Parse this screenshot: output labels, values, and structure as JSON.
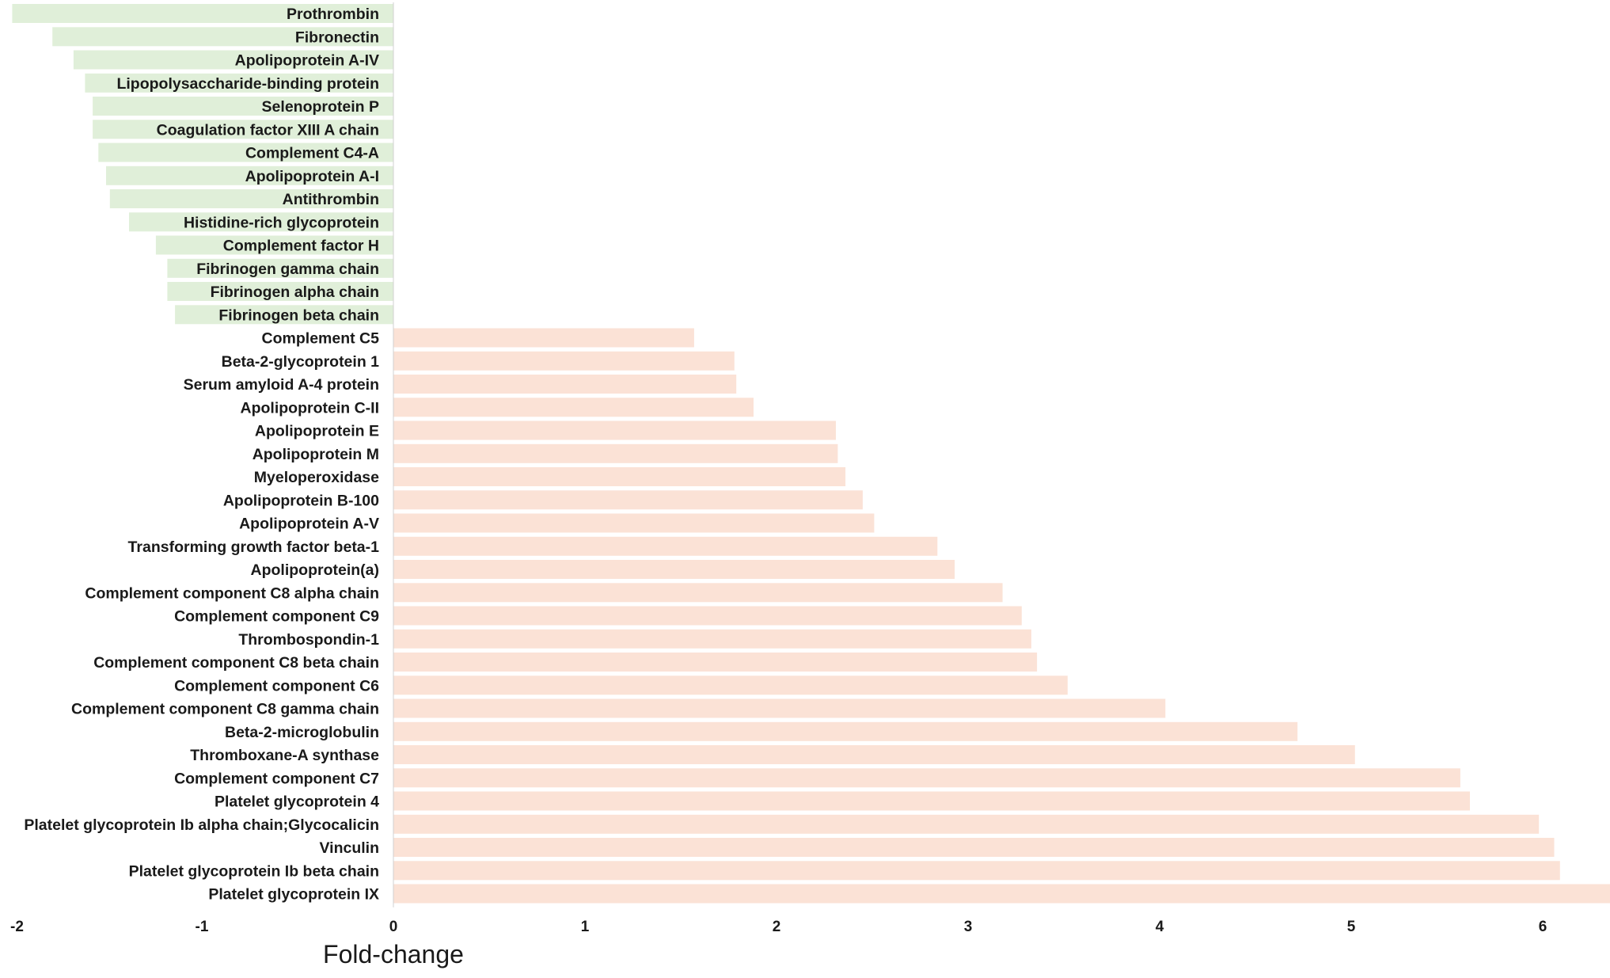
{
  "chart_data": {
    "type": "bar",
    "orientation": "horizontal",
    "xlabel": "Fold-change",
    "ylabel": "",
    "title": "",
    "xlim": [
      -2,
      6.35
    ],
    "xticks": [
      "-2",
      "-1",
      "0",
      "1",
      "2",
      "3",
      "4",
      "5",
      "6"
    ],
    "grid": false,
    "legend": "none",
    "colors": {
      "negative": "#e0efd9",
      "positive": "#fbe2d6",
      "axis": "#d0d0d0",
      "text": "#1a1a1a"
    },
    "categories": [
      "Prothrombin",
      "Fibronectin",
      "Apolipoprotein A-IV",
      "Lipopolysaccharide-binding protein",
      "Selenoprotein P",
      "Coagulation factor XIII A chain",
      "Complement C4-A",
      "Apolipoprotein A-I",
      "Antithrombin",
      "Histidine-rich glycoprotein",
      "Complement factor H",
      "Fibrinogen gamma chain",
      "Fibrinogen alpha chain",
      "Fibrinogen beta chain",
      "Complement C5",
      "Beta-2-glycoprotein 1",
      "Serum amyloid A-4 protein",
      "Apolipoprotein C-II",
      "Apolipoprotein E",
      "Apolipoprotein M",
      "Myeloperoxidase",
      "Apolipoprotein B-100",
      "Apolipoprotein A-V",
      "Transforming growth factor beta-1",
      "Apolipoprotein(a)",
      "Complement component C8 alpha chain",
      "Complement component C9",
      "Thrombospondin-1",
      "Complement component C8 beta chain",
      "Complement component C6",
      "Complement component C8 gamma chain",
      "Beta-2-microglobulin",
      "Thromboxane-A synthase",
      "Complement component C7",
      "Platelet glycoprotein 4",
      "Platelet glycoprotein Ib alpha chain;Glycocalicin",
      "Vinculin",
      "Platelet glycoprotein Ib beta chain",
      "Platelet glycoprotein IX"
    ],
    "values": [
      -1.99,
      -1.78,
      -1.67,
      -1.61,
      -1.57,
      -1.57,
      -1.54,
      -1.5,
      -1.48,
      -1.38,
      -1.24,
      -1.18,
      -1.18,
      -1.14,
      1.57,
      1.78,
      1.79,
      1.88,
      2.31,
      2.32,
      2.36,
      2.45,
      2.51,
      2.84,
      2.93,
      3.18,
      3.28,
      3.33,
      3.36,
      3.52,
      4.03,
      4.72,
      5.02,
      5.57,
      5.62,
      5.98,
      6.06,
      6.09,
      6.37
    ]
  }
}
